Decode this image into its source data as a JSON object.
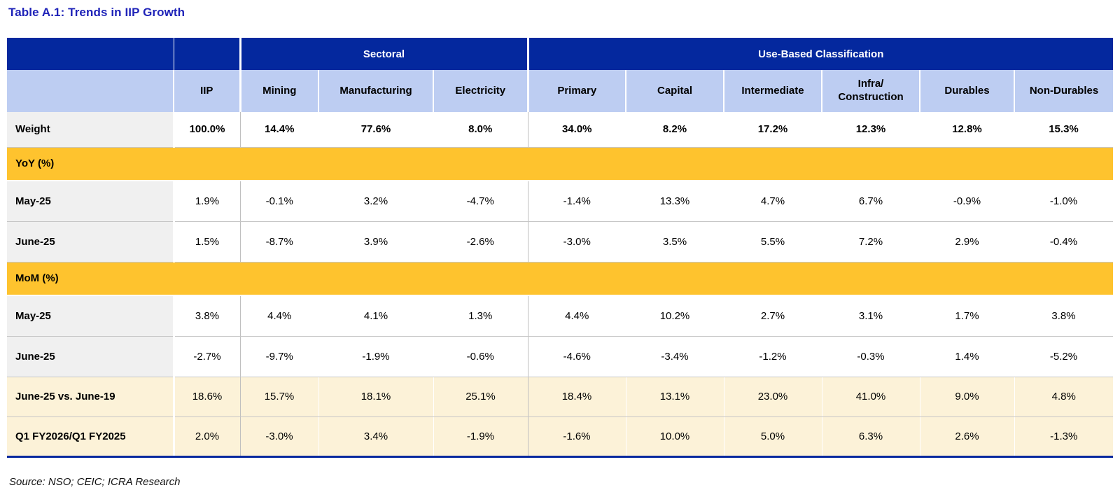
{
  "title": "Table A.1: Trends in IIP Growth",
  "source_note": "Source: NSO; CEIC; ICRA Research",
  "colors": {
    "header_blue": "#04289E",
    "header_light_blue": "#BDCDF2",
    "section_orange": "#FEC32E",
    "highlight_cream": "#FCF2D8",
    "label_gray": "#F0F0F0",
    "title_blue": "#1F23B8"
  },
  "table": {
    "group_headers": [
      {
        "label": "Sectoral",
        "span": 3
      },
      {
        "label": "Use-Based Classification",
        "span": 6
      }
    ],
    "columns": [
      "",
      "IIP",
      "Mining",
      "Manufacturing",
      "Electricity",
      "Primary",
      "Capital",
      "Intermediate",
      "Infra/\nConstruction",
      "Durables",
      "Non-Durables"
    ],
    "rows": [
      {
        "type": "weight",
        "label": "Weight",
        "values": [
          "100.0%",
          "14.4%",
          "77.6%",
          "8.0%",
          "34.0%",
          "8.2%",
          "17.2%",
          "12.3%",
          "12.8%",
          "15.3%"
        ]
      },
      {
        "type": "section",
        "label": "YoY (%)"
      },
      {
        "type": "data",
        "label": "May-25",
        "values": [
          "1.9%",
          "-0.1%",
          "3.2%",
          "-4.7%",
          "-1.4%",
          "13.3%",
          "4.7%",
          "6.7%",
          "-0.9%",
          "-1.0%"
        ]
      },
      {
        "type": "data",
        "label": "June-25",
        "values": [
          "1.5%",
          "-8.7%",
          "3.9%",
          "-2.6%",
          "-3.0%",
          "3.5%",
          "5.5%",
          "7.2%",
          "2.9%",
          "-0.4%"
        ]
      },
      {
        "type": "section",
        "label": "MoM (%)"
      },
      {
        "type": "data",
        "label": "May-25",
        "values": [
          "3.8%",
          "4.4%",
          "4.1%",
          "1.3%",
          "4.4%",
          "10.2%",
          "2.7%",
          "3.1%",
          "1.7%",
          "3.8%"
        ]
      },
      {
        "type": "data",
        "label": "June-25",
        "values": [
          "-2.7%",
          "-9.7%",
          "-1.9%",
          "-0.6%",
          "-4.6%",
          "-3.4%",
          "-1.2%",
          "-0.3%",
          "1.4%",
          "-5.2%"
        ]
      },
      {
        "type": "highlight",
        "label": "June-25 vs. June-19",
        "values": [
          "18.6%",
          "15.7%",
          "18.1%",
          "25.1%",
          "18.4%",
          "13.1%",
          "23.0%",
          "41.0%",
          "9.0%",
          "4.8%"
        ]
      },
      {
        "type": "highlight",
        "label": "Q1 FY2026/Q1 FY2025",
        "values": [
          "2.0%",
          "-3.0%",
          "3.4%",
          "-1.9%",
          "-1.6%",
          "10.0%",
          "5.0%",
          "6.3%",
          "2.6%",
          "-1.3%"
        ]
      }
    ]
  }
}
